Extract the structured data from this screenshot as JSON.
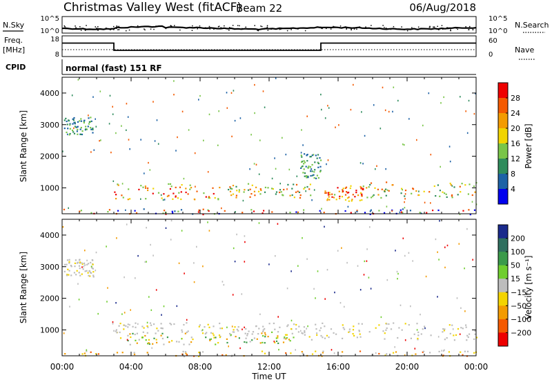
{
  "header": {
    "station": "Christmas Valley West (fitACF)",
    "beam": "Beam 22",
    "date": "06/Aug/2018"
  },
  "noise_panel": {
    "left_label": "N.Sky",
    "right_label": "N.Search",
    "left_ticks": [
      "10^5",
      "10^0"
    ],
    "right_ticks": [
      "10^5",
      "10^0"
    ]
  },
  "freq_panel": {
    "left_label_line1": "Freq.",
    "left_label_line2": "[MHz]",
    "right_label": "Nave",
    "left_ticks": [
      "18",
      "8"
    ],
    "right_ticks": [
      "60",
      "0"
    ],
    "freq_mhz": [
      {
        "from": "00:00",
        "to": "03:00",
        "value": 14.5
      },
      {
        "from": "03:00",
        "to": "15:00",
        "value": 11.0
      },
      {
        "from": "15:00",
        "to": "24:00",
        "value": 14.5
      }
    ]
  },
  "cpid_panel": {
    "label": "CPID",
    "mode": "normal (fast) 151 RF"
  },
  "x_axis": {
    "label": "Time UT",
    "ticks": [
      "00:00",
      "04:00",
      "08:00",
      "12:00",
      "16:00",
      "20:00",
      "00:00"
    ]
  },
  "chart_data": [
    {
      "type": "heatmap",
      "name": "power",
      "title": "",
      "xlabel": "Time UT",
      "ylabel": "Slant Range [km]",
      "x_range_hours": [
        0,
        24
      ],
      "ylim": [
        180,
        4500
      ],
      "y_ticks": [
        "1000",
        "2000",
        "3000",
        "4000"
      ],
      "colorbar": {
        "label": "Power [dB]",
        "ticks": [
          "28",
          "24",
          "20",
          "16",
          "12",
          "8",
          "4"
        ],
        "colors": [
          "#ee0000",
          "#f45a00",
          "#f39b00",
          "#f1d400",
          "#79c548",
          "#2f8c5c",
          "#1d62a6",
          "#0000ee"
        ]
      },
      "regions": [
        {
          "t0": 0.1,
          "t1": 1.8,
          "r0": 2700,
          "r1": 3250,
          "level": "low"
        },
        {
          "t0": 3.0,
          "t1": 9.5,
          "r0": 650,
          "r1": 1150,
          "level": "high"
        },
        {
          "t0": 9.5,
          "t1": 14.5,
          "r0": 700,
          "r1": 1150,
          "level": "medium"
        },
        {
          "t0": 15.2,
          "t1": 17.5,
          "r0": 600,
          "r1": 1100,
          "level": "high"
        },
        {
          "t0": 17.5,
          "t1": 24.0,
          "r0": 700,
          "r1": 1200,
          "level": "medium"
        },
        {
          "t0": 0.0,
          "t1": 24.0,
          "r0": 180,
          "r1": 350,
          "level": "ground"
        },
        {
          "t0": 13.8,
          "t1": 15.0,
          "r0": 1300,
          "r1": 2100,
          "level": "low"
        }
      ]
    },
    {
      "type": "heatmap",
      "name": "velocity",
      "title": "",
      "xlabel": "Time UT",
      "ylabel": "Slant Range [km]",
      "x_range_hours": [
        0,
        24
      ],
      "ylim": [
        180,
        4500
      ],
      "y_ticks": [
        "1000",
        "2000",
        "3000",
        "4000"
      ],
      "colorbar": {
        "label": "Velocity [m s⁻¹]",
        "ticks": [
          "200",
          "100",
          "50",
          "15",
          "−15",
          "−50",
          "−100",
          "−200"
        ],
        "colors": [
          "#1a2a8c",
          "#2f6f5f",
          "#3a9a4a",
          "#6fce2e",
          "#bdbdbd",
          "#f3d400",
          "#f39b00",
          "#f45a00",
          "#ee0000"
        ]
      },
      "regions": [
        {
          "t0": 0.1,
          "t1": 1.8,
          "r0": 2700,
          "r1": 3250,
          "level": "gray"
        },
        {
          "t0": 3.0,
          "t1": 24.0,
          "r0": 700,
          "r1": 1250,
          "level": "gray"
        },
        {
          "t0": 3.3,
          "t1": 13.5,
          "r0": 550,
          "r1": 950,
          "level": "mixed"
        },
        {
          "t0": 0.0,
          "t1": 24.0,
          "r0": 180,
          "r1": 350,
          "level": "orange"
        }
      ]
    }
  ]
}
